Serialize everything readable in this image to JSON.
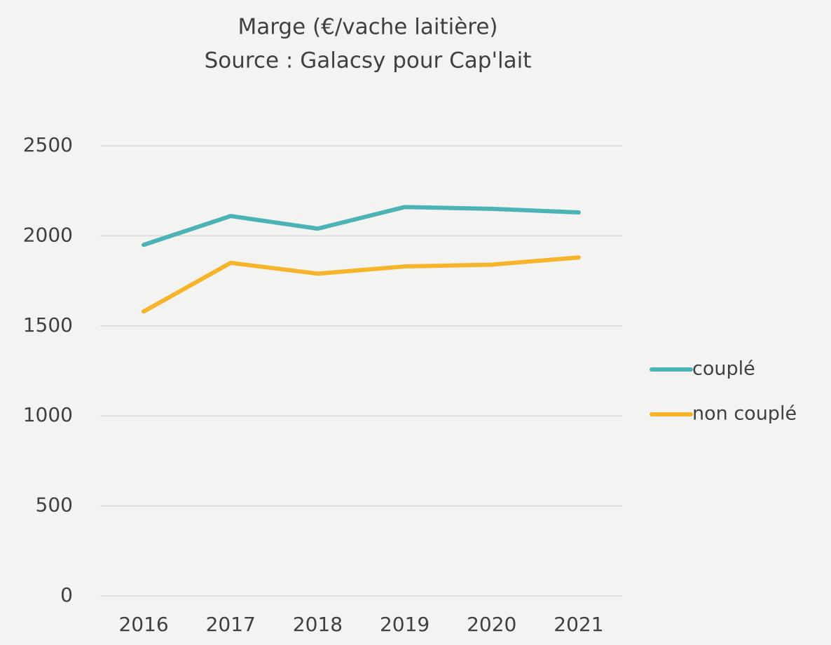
{
  "chart_data": {
    "type": "line",
    "title": "Marge (€/vache laitière)",
    "subtitle": "Source : Galacsy pour Cap'lait",
    "categories": [
      "2016",
      "2017",
      "2018",
      "2019",
      "2020",
      "2021"
    ],
    "series": [
      {
        "name": "couplé",
        "color": "#4bb3b5",
        "values": [
          1950,
          2110,
          2040,
          2160,
          2150,
          2130
        ]
      },
      {
        "name": "non couplé",
        "color": "#f6b42a",
        "values": [
          1580,
          1850,
          1790,
          1830,
          1840,
          1880
        ]
      }
    ],
    "ylim": [
      0,
      2500
    ],
    "yticks": [
      0,
      500,
      1000,
      1500,
      2000,
      2500
    ],
    "grid": true,
    "legend": "right"
  }
}
